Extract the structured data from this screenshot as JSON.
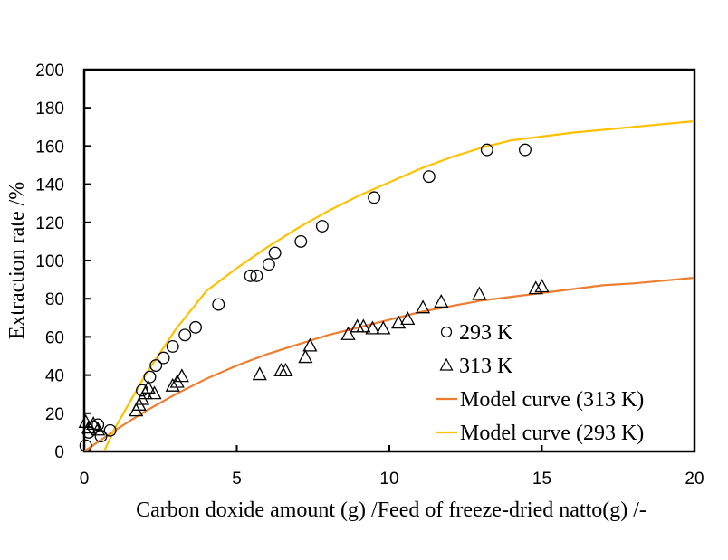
{
  "chart_data": {
    "type": "scatter",
    "title": "",
    "xlabel": "Carbon doxide amount (g) /Feed of freeze-dried natto(g)  /-",
    "ylabel": "Extraction rate /%",
    "xlim": [
      0,
      20
    ],
    "ylim": [
      0,
      200
    ],
    "xticks": [
      0,
      5,
      10,
      15,
      20
    ],
    "yticks": [
      0,
      20,
      40,
      60,
      80,
      100,
      120,
      140,
      160,
      180,
      200
    ],
    "grid": false,
    "legend_position": "bottom-right",
    "series": [
      {
        "name": "293 K",
        "kind": "scatter",
        "marker": "circle",
        "color": "#000000",
        "x": [
          0.05,
          0.15,
          0.3,
          0.45,
          0.55,
          0.85,
          1.9,
          2.15,
          2.35,
          2.6,
          2.9,
          3.3,
          3.65,
          4.4,
          5.45,
          5.65,
          6.05,
          6.25,
          7.1,
          7.8,
          9.5,
          11.3,
          13.2,
          14.45
        ],
        "y": [
          3,
          10,
          13,
          14,
          8,
          11,
          32,
          39,
          45,
          49,
          55,
          61,
          65,
          77,
          92,
          92,
          98,
          104,
          110,
          118,
          133,
          144,
          158,
          158
        ]
      },
      {
        "name": "313 K",
        "kind": "scatter",
        "marker": "triangle",
        "color": "#000000",
        "x": [
          0.05,
          0.15,
          0.3,
          0.45,
          1.7,
          1.8,
          1.9,
          2.0,
          2.1,
          2.3,
          2.9,
          3.05,
          3.2,
          5.75,
          6.45,
          6.6,
          7.25,
          7.4,
          8.65,
          8.95,
          9.15,
          9.45,
          9.8,
          10.3,
          10.6,
          11.1,
          11.7,
          12.95,
          14.8,
          15.0
        ],
        "y": [
          15,
          12,
          14,
          11,
          21,
          24,
          27,
          30,
          33,
          30,
          34,
          36,
          39,
          40,
          42,
          42,
          49,
          55,
          61,
          65,
          65,
          64,
          64,
          67,
          69,
          75,
          78,
          82,
          85,
          86
        ]
      },
      {
        "name": "Model curve (313 K)",
        "kind": "line",
        "color": "#ED7D31",
        "x": [
          0,
          1,
          2,
          3,
          4,
          5,
          6,
          7,
          8,
          9,
          10,
          11,
          12,
          13,
          14,
          15,
          16,
          17,
          18,
          19,
          20
        ],
        "y": [
          0,
          11,
          21,
          30,
          38,
          45,
          51,
          56,
          61,
          65,
          69,
          73,
          76,
          79,
          81,
          83,
          85,
          87,
          88,
          89.5,
          91
        ]
      },
      {
        "name": "Model curve (293 K)",
        "kind": "line",
        "color": "#FFC000",
        "x": [
          0.65,
          1,
          2,
          3,
          4,
          5,
          6,
          7,
          8,
          9,
          10,
          11,
          12,
          13,
          14,
          15,
          16,
          17,
          18,
          19,
          20
        ],
        "y": [
          0,
          12,
          40,
          64,
          84,
          96,
          107,
          117,
          126,
          134,
          141,
          148,
          154,
          159,
          163,
          165,
          167,
          168.5,
          170,
          171.5,
          173
        ]
      }
    ]
  }
}
